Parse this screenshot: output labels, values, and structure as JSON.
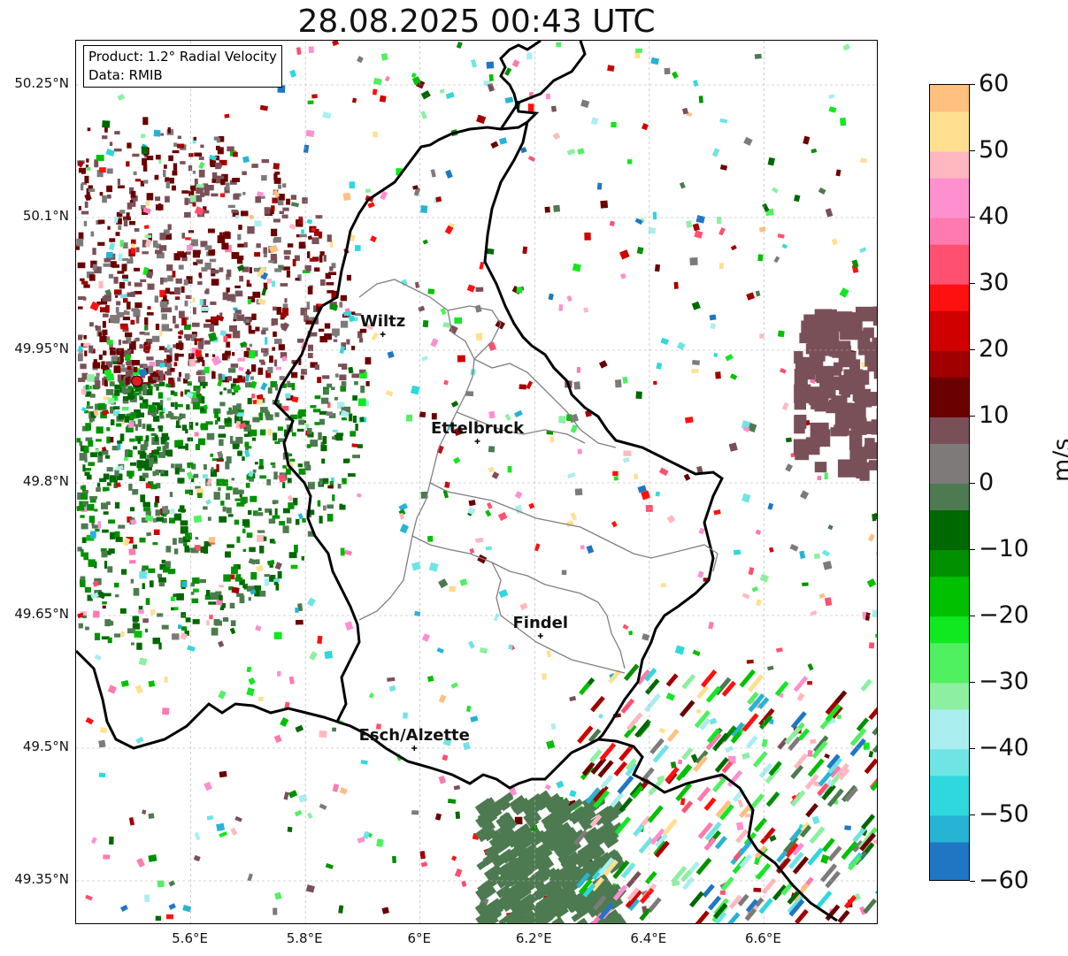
{
  "title": "28.08.2025 00:43 UTC",
  "info": {
    "product": "Product: 1.2° Radial Velocity",
    "data_source": "Data: RMIB"
  },
  "axes": {
    "y_ticks": [
      "50.25°N",
      "50.1°N",
      "49.95°N",
      "49.8°N",
      "49.65°N",
      "49.5°N",
      "49.35°N"
    ],
    "x_ticks": [
      "5.6°E",
      "5.8°E",
      "6°E",
      "6.2°E",
      "6.4°E",
      "6.6°E"
    ],
    "lon_range": [
      5.4,
      6.8
    ],
    "lat_range": [
      49.3,
      50.3
    ],
    "grid": true
  },
  "cities": [
    {
      "name": "Wiltz",
      "lon": 5.935,
      "lat": 49.968
    },
    {
      "name": "Ettelbruck",
      "lon": 6.1,
      "lat": 49.847
    },
    {
      "name": "Findel",
      "lon": 6.21,
      "lat": 49.627
    },
    {
      "name": "Esch/Alzette",
      "lon": 5.99,
      "lat": 49.5
    }
  ],
  "radar_site": {
    "lon": 5.506,
    "lat": 49.915,
    "marker_color": "#e41a1c"
  },
  "colorbar": {
    "unit": "m/s",
    "min": -60,
    "max": 60,
    "tick_labels": [
      "60",
      "50",
      "40",
      "30",
      "20",
      "10",
      "0",
      "−10",
      "−20",
      "−30",
      "−40",
      "−50",
      "−60"
    ],
    "colors": {
      "-60": "#1f77c4",
      "-55": "#27b3d4",
      "-50": "#2ed8dc",
      "-45": "#6fe4e4",
      "-40": "#aaeef0",
      "-35": "#8cf0a0",
      "-30": "#50f060",
      "-25": "#10e820",
      "-20": "#00c000",
      "-15": "#009000",
      "-10": "#006800",
      "-5": "#4d7a50",
      "0": "#7e7a7a",
      "5": "#7a5058",
      "10": "#6a0000",
      "15": "#a00000",
      "20": "#d00000",
      "25": "#ff1010",
      "30": "#ff5070",
      "35": "#ff7ab0",
      "40": "#ff90d0",
      "45": "#ffb8c0",
      "50": "#ffe090",
      "55": "#ffc080",
      "60": "#ff9a50"
    }
  },
  "colors": {
    "border_country": "#000000",
    "border_canton": "#808080",
    "grid": "#b0b0b0"
  }
}
